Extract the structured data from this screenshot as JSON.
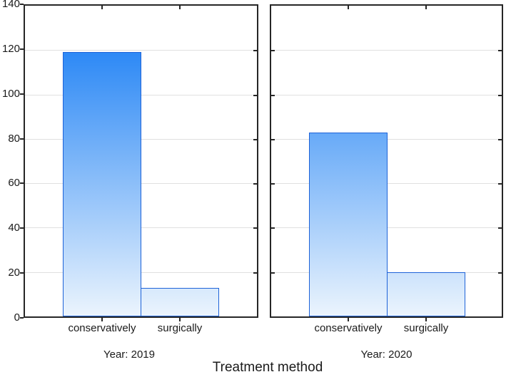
{
  "chart_data": {
    "type": "bar",
    "title": "",
    "xlabel": "Treatment method",
    "ylabel": "",
    "ylim": [
      0,
      140
    ],
    "yticks": [
      0,
      20,
      40,
      60,
      80,
      100,
      120,
      140
    ],
    "grid": "horizontal",
    "legend": "none",
    "categories": [
      "conservatively",
      "surgically"
    ],
    "panels": [
      {
        "caption": "Year: 2019",
        "values": [
          119,
          13
        ]
      },
      {
        "caption": "Year: 2020",
        "values": [
          83,
          20
        ]
      }
    ],
    "colors": {
      "bar_gradient_top": "#0b76f4",
      "bar_gradient_bottom": "#ebf4fd",
      "bar_border": "#1e63d8",
      "frame": "#262626",
      "gridline": "#e0e0e0",
      "text": "#1a1a1a"
    }
  }
}
